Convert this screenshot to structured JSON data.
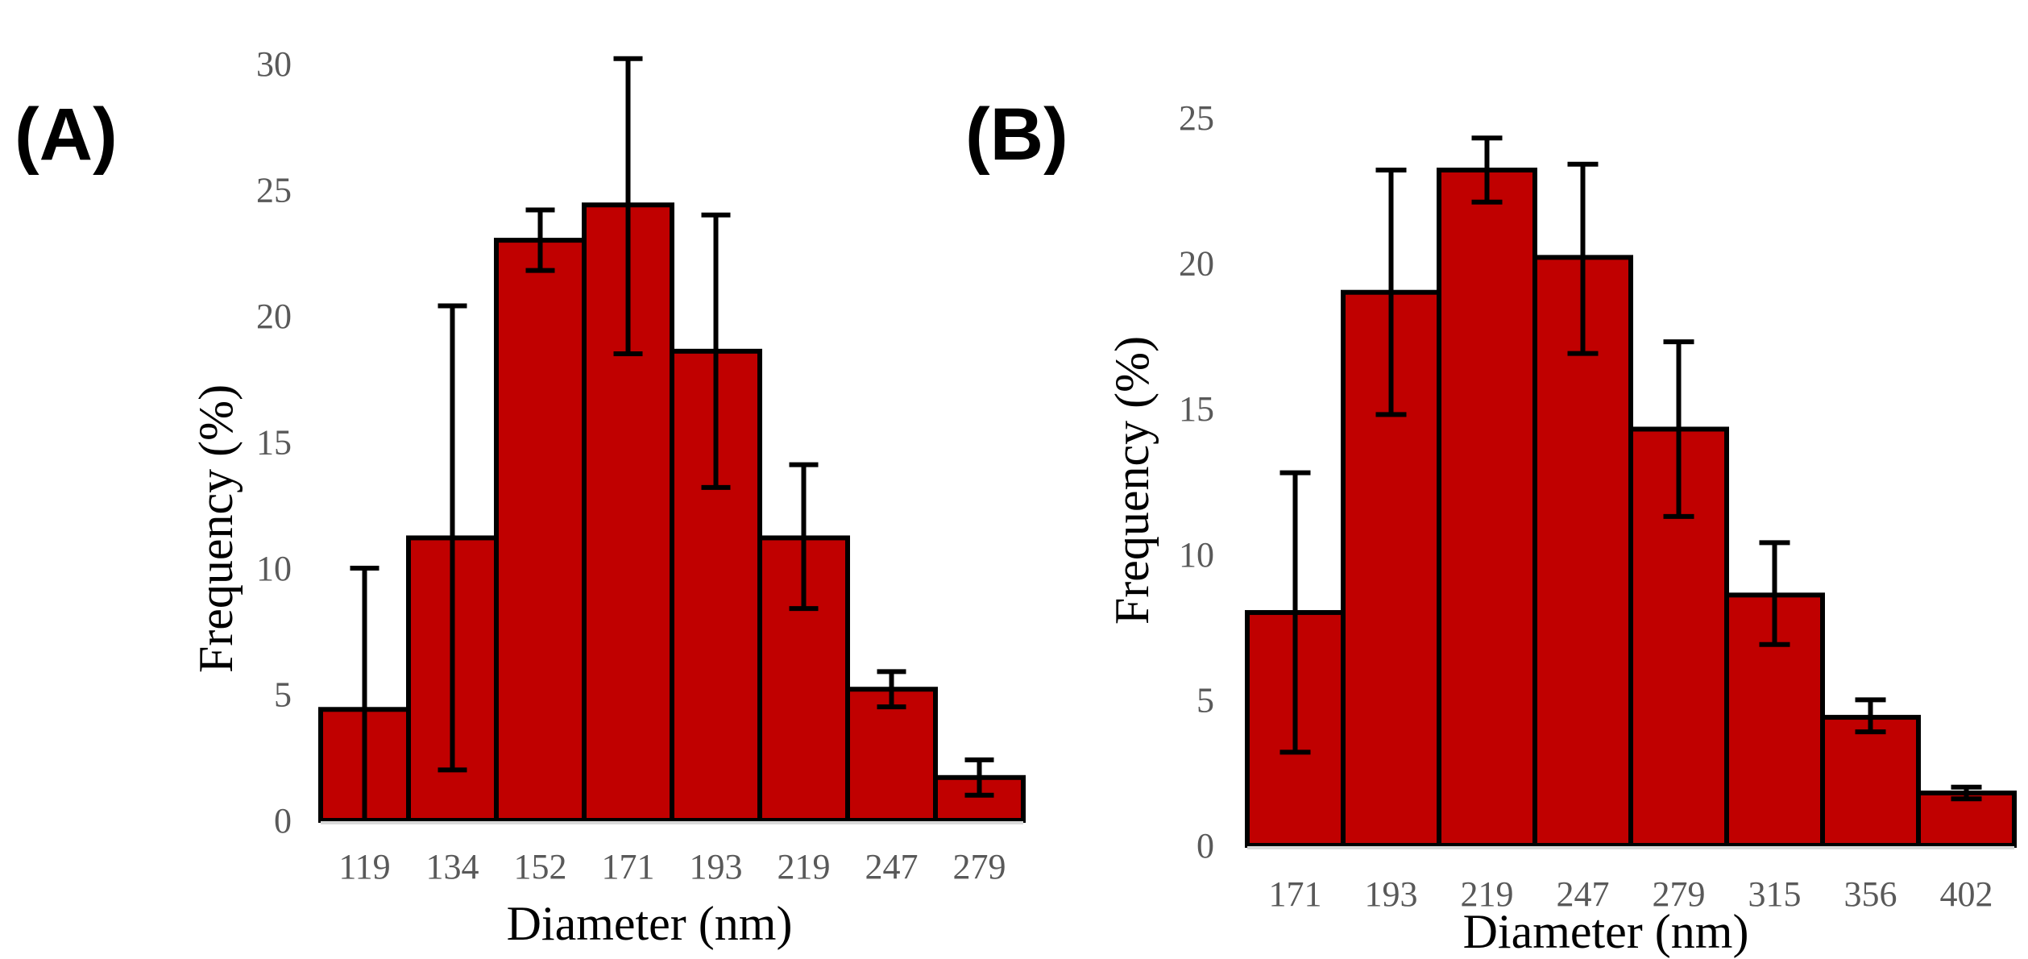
{
  "chart_data": [
    {
      "type": "bar",
      "panel_label": "(A)",
      "categories": [
        "119",
        "134",
        "152",
        "171",
        "193",
        "219",
        "247",
        "279"
      ],
      "values": [
        4.4,
        11.2,
        23.0,
        24.4,
        18.6,
        11.2,
        5.2,
        1.7
      ],
      "error_low": [
        0.0,
        2.0,
        21.8,
        18.5,
        13.2,
        8.4,
        4.5,
        1.0
      ],
      "error_high": [
        10.0,
        20.4,
        24.2,
        30.2,
        24.0,
        14.1,
        5.9,
        2.4
      ],
      "xlabel": "Diameter (nm)",
      "ylabel": "Frequency (%)",
      "ylim": [
        0,
        30
      ],
      "yticks": [
        "0",
        "5",
        "10",
        "15",
        "20",
        "25",
        "30"
      ],
      "grid": false
    },
    {
      "type": "bar",
      "panel_label": "(B)",
      "categories": [
        "171",
        "193",
        "219",
        "247",
        "279",
        "315",
        "356",
        "402"
      ],
      "values": [
        8.0,
        19.0,
        23.2,
        20.2,
        14.3,
        8.6,
        4.4,
        1.8
      ],
      "error_low": [
        3.2,
        14.8,
        22.1,
        16.9,
        11.3,
        6.9,
        3.9,
        1.6
      ],
      "error_high": [
        12.8,
        23.2,
        24.3,
        23.4,
        17.3,
        10.4,
        5.0,
        2.0
      ],
      "xlabel": "Diameter (nm)",
      "ylabel": "Frequency (%)",
      "ylim": [
        0,
        25
      ],
      "yticks": [
        "0",
        "5",
        "10",
        "15",
        "20",
        "25"
      ],
      "grid": false
    }
  ],
  "colors": {
    "bar_fill": "#c00000",
    "bar_stroke": "#000000",
    "tick_text": "#595959"
  }
}
